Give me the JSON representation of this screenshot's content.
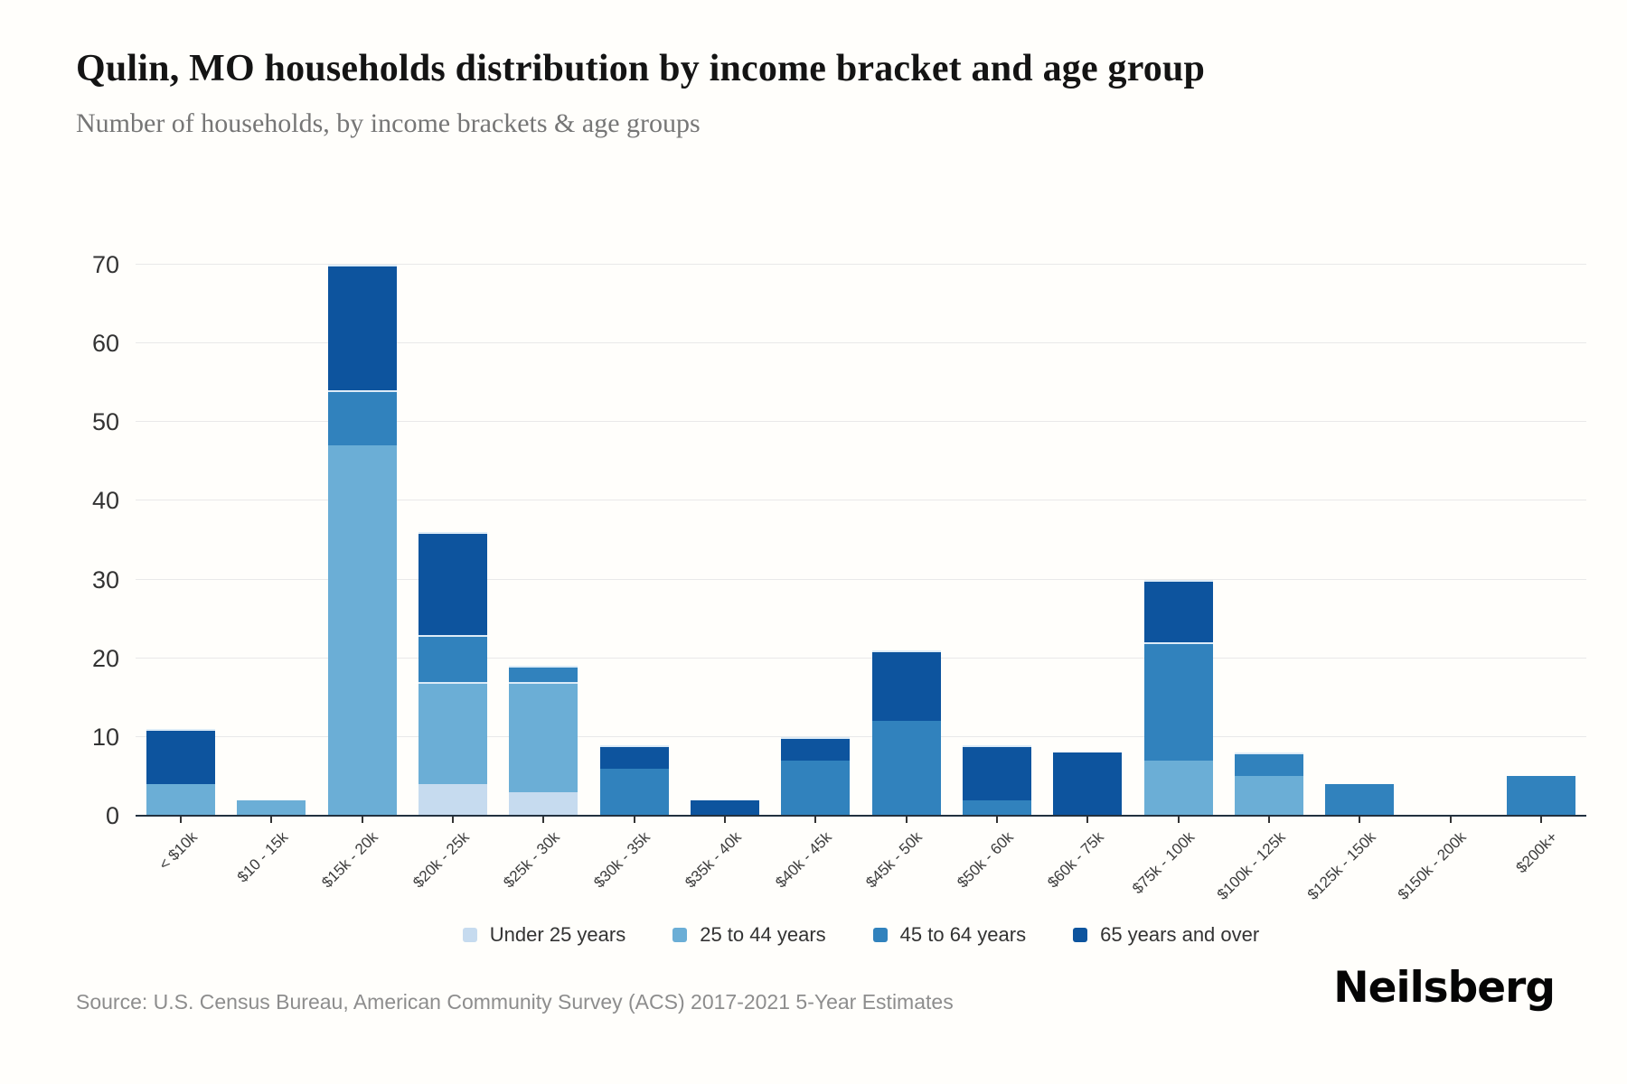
{
  "header": {
    "title": "Qulin, MO households distribution by income bracket and age group",
    "subtitle": "Number of households, by income brackets & age groups"
  },
  "footer": {
    "source": "Source: U.S. Census Bureau, American Community Survey (ACS) 2017-2021 5-Year Estimates",
    "brand": "Neilsberg"
  },
  "colors": {
    "background": "#fffefb",
    "gridline": "#e9e9e9",
    "axis_line": "#22313f",
    "segment_divider": "#dcebf7"
  },
  "chart_data": {
    "type": "bar",
    "stacked": true,
    "title": "Qulin, MO households distribution by income bracket and age group",
    "xlabel": "",
    "ylabel": "",
    "ylim": [
      0,
      70
    ],
    "yticks": [
      0,
      10,
      20,
      30,
      40,
      50,
      60,
      70
    ],
    "grid": true,
    "legend_position": "bottom",
    "categories": [
      "< $10k",
      "$10 - 15k",
      "$15k - 20k",
      "$20k - 25k",
      "$25k - 30k",
      "$30k - 35k",
      "$35k - 40k",
      "$40k - 45k",
      "$45k - 50k",
      "$50k - 60k",
      "$60k - 75k",
      "$75k - 100k",
      "$100k - 125k",
      "$125k - 150k",
      "$150k - 200k",
      "$200k+"
    ],
    "series": [
      {
        "name": "Under 25 years",
        "color": "#c6dbef",
        "values": [
          0,
          0,
          0,
          4,
          3,
          0,
          0,
          0,
          0,
          0,
          0,
          0,
          0,
          0,
          0,
          0
        ]
      },
      {
        "name": "25 to 44 years",
        "color": "#6baed6",
        "values": [
          4,
          2,
          47,
          13,
          14,
          0,
          0,
          0,
          0,
          0,
          0,
          7,
          5,
          0,
          0,
          0
        ]
      },
      {
        "name": "45 to 64 years",
        "color": "#3182bd",
        "values": [
          0,
          0,
          7,
          6,
          2,
          6,
          0,
          7,
          12,
          2,
          0,
          15,
          3,
          4,
          0,
          5
        ]
      },
      {
        "name": "65 years and over",
        "color": "#0d549e",
        "values": [
          7,
          0,
          16,
          13,
          0,
          3,
          2,
          3,
          9,
          7,
          8,
          8,
          0,
          0,
          0,
          0
        ]
      }
    ],
    "totals": [
      11,
      2,
      70,
      36,
      19,
      9,
      2,
      10,
      21,
      9,
      8,
      30,
      8,
      4,
      0,
      5
    ]
  }
}
